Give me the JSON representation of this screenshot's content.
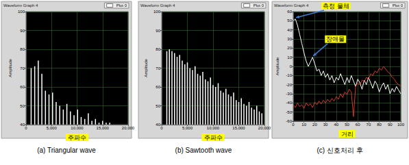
{
  "chart_data": [
    {
      "type": "bar",
      "title": "Waveform Graph 4",
      "x_label": "주파수",
      "y_label": "Amplitude",
      "caption": "(a) Triangular wave",
      "legend": "top-right",
      "grid": true,
      "x": [
        1000,
        1700,
        2400,
        3100,
        3800,
        4500,
        5200,
        5900,
        6600,
        7300,
        8000,
        8700,
        9400,
        10100,
        10800,
        11500,
        12200,
        12900,
        13600,
        14300,
        15000,
        15700,
        16400
      ],
      "series": [
        {
          "name": "Plot 0",
          "color": "#ffffff",
          "values": [
            70,
            71,
            74,
            67,
            58,
            56,
            57,
            52,
            50,
            48,
            51,
            47,
            45,
            48,
            44,
            43,
            46,
            42,
            43,
            41,
            42,
            41,
            41
          ]
        }
      ],
      "xlim": [
        0,
        20000
      ],
      "xticks": [
        0,
        5000,
        10000,
        15000,
        20000
      ],
      "ylim": [
        40,
        100
      ],
      "yticks": [
        40,
        50,
        60,
        70,
        80,
        90,
        100
      ]
    },
    {
      "type": "bar",
      "title": "Waveform Graph 4",
      "x_label": "주파수",
      "y_label": "Amplitude",
      "caption": "(b) Sawtooth wave",
      "legend": "top-right",
      "grid": true,
      "x": [
        1000,
        1500,
        2000,
        2500,
        3000,
        3500,
        4000,
        4500,
        5000,
        5500,
        6000,
        6500,
        7000,
        7500,
        8000,
        8500,
        9000,
        9500,
        10000,
        10500,
        11000,
        11500,
        12000,
        12500,
        13000,
        13500,
        14000,
        14500,
        15000,
        15500,
        16000,
        16500,
        17000,
        17500,
        18000,
        18500,
        19000,
        19500
      ],
      "series": [
        {
          "name": "Plot 0",
          "color": "#ffffff",
          "values": [
            79,
            80,
            79,
            78,
            76,
            77,
            74,
            72,
            73,
            70,
            69,
            71,
            67,
            66,
            68,
            64,
            63,
            65,
            61,
            60,
            62,
            58,
            57,
            59,
            56,
            55,
            57,
            53,
            52,
            54,
            51,
            50,
            52,
            49,
            48,
            50,
            47,
            46
          ]
        }
      ],
      "xlim": [
        0,
        20000
      ],
      "xticks": [
        0,
        5000,
        10000,
        15000,
        20000
      ],
      "ylim": [
        40,
        100
      ],
      "yticks": [
        40,
        50,
        60,
        70,
        80,
        90,
        100
      ]
    },
    {
      "type": "line",
      "title": "Waveform Graph 4",
      "x_label": "거리",
      "y_label": "Amplitude",
      "caption": "(c) 신호처리 후",
      "legend": "top-right",
      "grid": true,
      "x": [
        0,
        2,
        4,
        6,
        8,
        10,
        12,
        14,
        16,
        18,
        20,
        22,
        24,
        26,
        28,
        30,
        32,
        34,
        36,
        38,
        40,
        42,
        44,
        46,
        48,
        50,
        52,
        54,
        56,
        58,
        60,
        62,
        64,
        66,
        68,
        70,
        72,
        74,
        76,
        78,
        80,
        82,
        84,
        86,
        88,
        90,
        92,
        94,
        96,
        98,
        100
      ],
      "series": [
        {
          "name": "Plot 0",
          "color": "#ffffff",
          "values": [
            50,
            52,
            45,
            35,
            25,
            15,
            6,
            0,
            5,
            10,
            3,
            -5,
            -3,
            -10,
            -5,
            -12,
            -8,
            -15,
            -10,
            -18,
            -12,
            -15,
            -8,
            -14,
            -20,
            -12,
            -18,
            -10,
            -16,
            -22,
            -14,
            -18,
            -25,
            -15,
            -20,
            -12,
            -18,
            -24,
            -16,
            -20,
            -28,
            -22,
            -18,
            -25,
            -20,
            -30,
            -24,
            -28,
            -22,
            -26,
            -30
          ]
        },
        {
          "color": "#d03a2a",
          "values": [
            -42,
            -45,
            -40,
            -44,
            -42,
            -46,
            -40,
            -43,
            -41,
            -45,
            -39,
            -42,
            -38,
            -41,
            -37,
            -40,
            -36,
            -39,
            -35,
            -38,
            -33,
            -36,
            -30,
            -34,
            -28,
            -31,
            -25,
            -28,
            -55,
            -22,
            -18,
            -20,
            -15,
            -17,
            -12,
            -14,
            -8,
            -10,
            -5,
            -7,
            -2,
            -4,
            0,
            -3,
            -6,
            -8,
            -12,
            -14,
            -18,
            -20,
            -22
          ]
        }
      ],
      "xlim": [
        0,
        100
      ],
      "xticks": [
        0,
        10,
        20,
        30,
        40,
        50,
        60,
        70,
        80,
        90,
        100
      ],
      "ylim": [
        -60,
        60
      ],
      "yticks": [
        -60,
        -50,
        -40,
        -30,
        -20,
        -10,
        0,
        10,
        20,
        30,
        40,
        50,
        60
      ],
      "annotations": [
        {
          "text": "측정 물체",
          "x": 2,
          "y": 52
        },
        {
          "text": "장애물",
          "x": 18,
          "y": 10
        }
      ]
    }
  ]
}
